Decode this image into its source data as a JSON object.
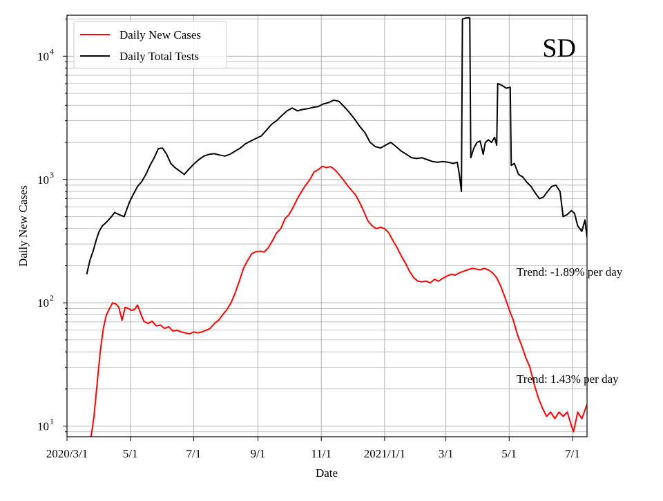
{
  "chart_data": {
    "type": "line",
    "state_label": "SD",
    "xlabel": "Date",
    "ylabel": "Daily New Cases",
    "yscale": "log",
    "ylim": [
      8.2,
      21500
    ],
    "xlim": [
      "2020-03-01",
      "2021-07-15"
    ],
    "x_ticks": [
      {
        "date": "2020-03-01",
        "label": "2020/3/1"
      },
      {
        "date": "2020-05-01",
        "label": "5/1"
      },
      {
        "date": "2020-07-01",
        "label": "7/1"
      },
      {
        "date": "2020-09-01",
        "label": "9/1"
      },
      {
        "date": "2020-11-01",
        "label": "11/1"
      },
      {
        "date": "2021-01-01",
        "label": "2021/1/1"
      },
      {
        "date": "2021-03-01",
        "label": "3/1"
      },
      {
        "date": "2021-05-01",
        "label": "5/1"
      },
      {
        "date": "2021-07-01",
        "label": "7/1"
      }
    ],
    "y_ticks": [
      {
        "value": 10,
        "base": "10",
        "exp": "1"
      },
      {
        "value": 100,
        "base": "10",
        "exp": "2"
      },
      {
        "value": 1000,
        "base": "10",
        "exp": "3"
      },
      {
        "value": 10000,
        "base": "10",
        "exp": "4"
      }
    ],
    "grid": true,
    "legend_position": "top-left",
    "series": [
      {
        "name": "Daily New Cases",
        "color": "#ff0000",
        "points": [
          [
            "2020-03-24",
            8
          ],
          [
            "2020-03-27",
            12
          ],
          [
            "2020-03-30",
            22
          ],
          [
            "2020-04-02",
            40
          ],
          [
            "2020-04-05",
            62
          ],
          [
            "2020-04-08",
            80
          ],
          [
            "2020-04-11",
            90
          ],
          [
            "2020-04-14",
            100
          ],
          [
            "2020-04-17",
            98
          ],
          [
            "2020-04-20",
            92
          ],
          [
            "2020-04-23",
            72
          ],
          [
            "2020-04-26",
            92
          ],
          [
            "2020-04-29",
            90
          ],
          [
            "2020-05-02",
            87
          ],
          [
            "2020-05-05",
            88
          ],
          [
            "2020-05-08",
            96
          ],
          [
            "2020-05-11",
            82
          ],
          [
            "2020-05-14",
            71
          ],
          [
            "2020-05-18",
            68
          ],
          [
            "2020-05-22",
            71
          ],
          [
            "2020-05-26",
            65
          ],
          [
            "2020-05-30",
            66
          ],
          [
            "2020-06-03",
            62
          ],
          [
            "2020-06-07",
            64
          ],
          [
            "2020-06-11",
            59
          ],
          [
            "2020-06-15",
            60
          ],
          [
            "2020-06-19",
            58
          ],
          [
            "2020-06-23",
            57
          ],
          [
            "2020-06-27",
            56
          ],
          [
            "2020-07-01",
            58
          ],
          [
            "2020-07-05",
            57
          ],
          [
            "2020-07-09",
            58
          ],
          [
            "2020-07-13",
            60
          ],
          [
            "2020-07-17",
            62
          ],
          [
            "2020-07-21",
            68
          ],
          [
            "2020-07-25",
            72
          ],
          [
            "2020-07-29",
            80
          ],
          [
            "2020-08-02",
            88
          ],
          [
            "2020-08-06",
            100
          ],
          [
            "2020-08-10",
            120
          ],
          [
            "2020-08-14",
            150
          ],
          [
            "2020-08-18",
            190
          ],
          [
            "2020-08-22",
            220
          ],
          [
            "2020-08-26",
            250
          ],
          [
            "2020-08-30",
            260
          ],
          [
            "2020-09-03",
            262
          ],
          [
            "2020-09-07",
            258
          ],
          [
            "2020-09-11",
            280
          ],
          [
            "2020-09-15",
            320
          ],
          [
            "2020-09-19",
            370
          ],
          [
            "2020-09-23",
            400
          ],
          [
            "2020-09-27",
            480
          ],
          [
            "2020-10-01",
            520
          ],
          [
            "2020-10-05",
            600
          ],
          [
            "2020-10-09",
            700
          ],
          [
            "2020-10-13",
            800
          ],
          [
            "2020-10-17",
            900
          ],
          [
            "2020-10-21",
            1000
          ],
          [
            "2020-10-25",
            1150
          ],
          [
            "2020-10-29",
            1200
          ],
          [
            "2020-11-02",
            1280
          ],
          [
            "2020-11-06",
            1250
          ],
          [
            "2020-11-10",
            1270
          ],
          [
            "2020-11-14",
            1200
          ],
          [
            "2020-11-18",
            1100
          ],
          [
            "2020-11-22",
            1000
          ],
          [
            "2020-11-26",
            900
          ],
          [
            "2020-11-30",
            820
          ],
          [
            "2020-12-04",
            750
          ],
          [
            "2020-12-08",
            650
          ],
          [
            "2020-12-12",
            550
          ],
          [
            "2020-12-16",
            460
          ],
          [
            "2020-12-20",
            420
          ],
          [
            "2020-12-24",
            400
          ],
          [
            "2020-12-28",
            410
          ],
          [
            "2021-01-01",
            400
          ],
          [
            "2021-01-05",
            370
          ],
          [
            "2021-01-09",
            320
          ],
          [
            "2021-01-13",
            280
          ],
          [
            "2021-01-17",
            240
          ],
          [
            "2021-01-21",
            210
          ],
          [
            "2021-01-25",
            180
          ],
          [
            "2021-01-29",
            160
          ],
          [
            "2021-02-02",
            150
          ],
          [
            "2021-02-06",
            148
          ],
          [
            "2021-02-10",
            150
          ],
          [
            "2021-02-14",
            145
          ],
          [
            "2021-02-18",
            155
          ],
          [
            "2021-02-22",
            150
          ],
          [
            "2021-02-26",
            158
          ],
          [
            "2021-03-02",
            165
          ],
          [
            "2021-03-06",
            170
          ],
          [
            "2021-03-10",
            168
          ],
          [
            "2021-03-14",
            175
          ],
          [
            "2021-03-18",
            180
          ],
          [
            "2021-03-22",
            185
          ],
          [
            "2021-03-26",
            190
          ],
          [
            "2021-03-30",
            188
          ],
          [
            "2021-04-03",
            185
          ],
          [
            "2021-04-07",
            190
          ],
          [
            "2021-04-11",
            185
          ],
          [
            "2021-04-15",
            175
          ],
          [
            "2021-04-19",
            160
          ],
          [
            "2021-04-23",
            135
          ],
          [
            "2021-04-27",
            110
          ],
          [
            "2021-05-01",
            88
          ],
          [
            "2021-05-05",
            72
          ],
          [
            "2021-05-09",
            55
          ],
          [
            "2021-05-13",
            45
          ],
          [
            "2021-05-17",
            36
          ],
          [
            "2021-05-21",
            30
          ],
          [
            "2021-05-25",
            22
          ],
          [
            "2021-05-29",
            17
          ],
          [
            "2021-06-02",
            14
          ],
          [
            "2021-06-06",
            12
          ],
          [
            "2021-06-10",
            13
          ],
          [
            "2021-06-14",
            11.5
          ],
          [
            "2021-06-18",
            13
          ],
          [
            "2021-06-22",
            12
          ],
          [
            "2021-06-26",
            13
          ],
          [
            "2021-06-30",
            10
          ],
          [
            "2021-07-02",
            9
          ],
          [
            "2021-07-06",
            13
          ],
          [
            "2021-07-10",
            11.5
          ],
          [
            "2021-07-15",
            15
          ]
        ]
      },
      {
        "name": "Daily Total Tests",
        "color": "#000000",
        "points": [
          [
            "2020-03-20",
            170
          ],
          [
            "2020-03-23",
            220
          ],
          [
            "2020-03-26",
            260
          ],
          [
            "2020-03-29",
            320
          ],
          [
            "2020-04-01",
            380
          ],
          [
            "2020-04-04",
            420
          ],
          [
            "2020-04-08",
            450
          ],
          [
            "2020-04-12",
            490
          ],
          [
            "2020-04-16",
            540
          ],
          [
            "2020-04-20",
            520
          ],
          [
            "2020-04-25",
            500
          ],
          [
            "2020-04-30",
            650
          ],
          [
            "2020-05-04",
            760
          ],
          [
            "2020-05-08",
            880
          ],
          [
            "2020-05-12",
            960
          ],
          [
            "2020-05-16",
            1100
          ],
          [
            "2020-05-20",
            1300
          ],
          [
            "2020-05-24",
            1500
          ],
          [
            "2020-05-28",
            1780
          ],
          [
            "2020-06-01",
            1800
          ],
          [
            "2020-06-05",
            1600
          ],
          [
            "2020-06-09",
            1350
          ],
          [
            "2020-06-13",
            1250
          ],
          [
            "2020-06-17",
            1180
          ],
          [
            "2020-06-22",
            1100
          ],
          [
            "2020-06-26",
            1200
          ],
          [
            "2020-07-01",
            1330
          ],
          [
            "2020-07-06",
            1450
          ],
          [
            "2020-07-11",
            1550
          ],
          [
            "2020-07-16",
            1600
          ],
          [
            "2020-07-21",
            1620
          ],
          [
            "2020-07-26",
            1580
          ],
          [
            "2020-07-31",
            1550
          ],
          [
            "2020-08-05",
            1600
          ],
          [
            "2020-08-10",
            1700
          ],
          [
            "2020-08-15",
            1800
          ],
          [
            "2020-08-20",
            1950
          ],
          [
            "2020-08-25",
            2050
          ],
          [
            "2020-08-30",
            2150
          ],
          [
            "2020-09-04",
            2250
          ],
          [
            "2020-09-09",
            2500
          ],
          [
            "2020-09-14",
            2800
          ],
          [
            "2020-09-19",
            3000
          ],
          [
            "2020-09-24",
            3300
          ],
          [
            "2020-09-29",
            3600
          ],
          [
            "2020-10-04",
            3800
          ],
          [
            "2020-10-09",
            3600
          ],
          [
            "2020-10-14",
            3700
          ],
          [
            "2020-10-19",
            3750
          ],
          [
            "2020-10-24",
            3850
          ],
          [
            "2020-10-29",
            3900
          ],
          [
            "2020-11-03",
            4100
          ],
          [
            "2020-11-08",
            4200
          ],
          [
            "2020-11-13",
            4400
          ],
          [
            "2020-11-18",
            4300
          ],
          [
            "2020-11-23",
            3900
          ],
          [
            "2020-11-28",
            3500
          ],
          [
            "2020-12-03",
            3100
          ],
          [
            "2020-12-08",
            2700
          ],
          [
            "2020-12-13",
            2400
          ],
          [
            "2020-12-18",
            2000
          ],
          [
            "2020-12-23",
            1850
          ],
          [
            "2020-12-28",
            1800
          ],
          [
            "2021-01-02",
            1900
          ],
          [
            "2021-01-07",
            2000
          ],
          [
            "2021-01-12",
            1850
          ],
          [
            "2021-01-17",
            1700
          ],
          [
            "2021-01-22",
            1600
          ],
          [
            "2021-01-27",
            1500
          ],
          [
            "2021-02-01",
            1480
          ],
          [
            "2021-02-06",
            1500
          ],
          [
            "2021-02-11",
            1450
          ],
          [
            "2021-02-16",
            1400
          ],
          [
            "2021-02-21",
            1380
          ],
          [
            "2021-02-26",
            1400
          ],
          [
            "2021-03-03",
            1380
          ],
          [
            "2021-03-08",
            1350
          ],
          [
            "2021-03-12",
            1380
          ],
          [
            "2021-03-14",
            1100
          ],
          [
            "2021-03-16",
            800
          ],
          [
            "2021-03-17",
            20000
          ],
          [
            "2021-03-21",
            20500
          ],
          [
            "2021-03-24",
            20500
          ],
          [
            "2021-03-25",
            1500
          ],
          [
            "2021-03-28",
            1800
          ],
          [
            "2021-03-31",
            2000
          ],
          [
            "2021-04-03",
            2050
          ],
          [
            "2021-04-06",
            1600
          ],
          [
            "2021-04-08",
            2000
          ],
          [
            "2021-04-11",
            2100
          ],
          [
            "2021-04-14",
            2000
          ],
          [
            "2021-04-17",
            2200
          ],
          [
            "2021-04-19",
            1900
          ],
          [
            "2021-04-20",
            6000
          ],
          [
            "2021-04-24",
            5800
          ],
          [
            "2021-04-28",
            5500
          ],
          [
            "2021-05-02",
            5600
          ],
          [
            "2021-05-03",
            1300
          ],
          [
            "2021-05-06",
            1350
          ],
          [
            "2021-05-10",
            1100
          ],
          [
            "2021-05-14",
            1050
          ],
          [
            "2021-05-18",
            950
          ],
          [
            "2021-05-22",
            880
          ],
          [
            "2021-05-26",
            780
          ],
          [
            "2021-05-30",
            700
          ],
          [
            "2021-06-03",
            720
          ],
          [
            "2021-06-07",
            800
          ],
          [
            "2021-06-11",
            880
          ],
          [
            "2021-06-15",
            900
          ],
          [
            "2021-06-19",
            800
          ],
          [
            "2021-06-22",
            500
          ],
          [
            "2021-06-26",
            520
          ],
          [
            "2021-06-30",
            560
          ],
          [
            "2021-07-03",
            530
          ],
          [
            "2021-07-06",
            420
          ],
          [
            "2021-07-10",
            380
          ],
          [
            "2021-07-13",
            470
          ],
          [
            "2021-07-15",
            340
          ]
        ]
      }
    ],
    "annotations": [
      {
        "text": "Trend: -1.89% per day"
      },
      {
        "text": "Trend: 1.43% per day"
      }
    ]
  }
}
